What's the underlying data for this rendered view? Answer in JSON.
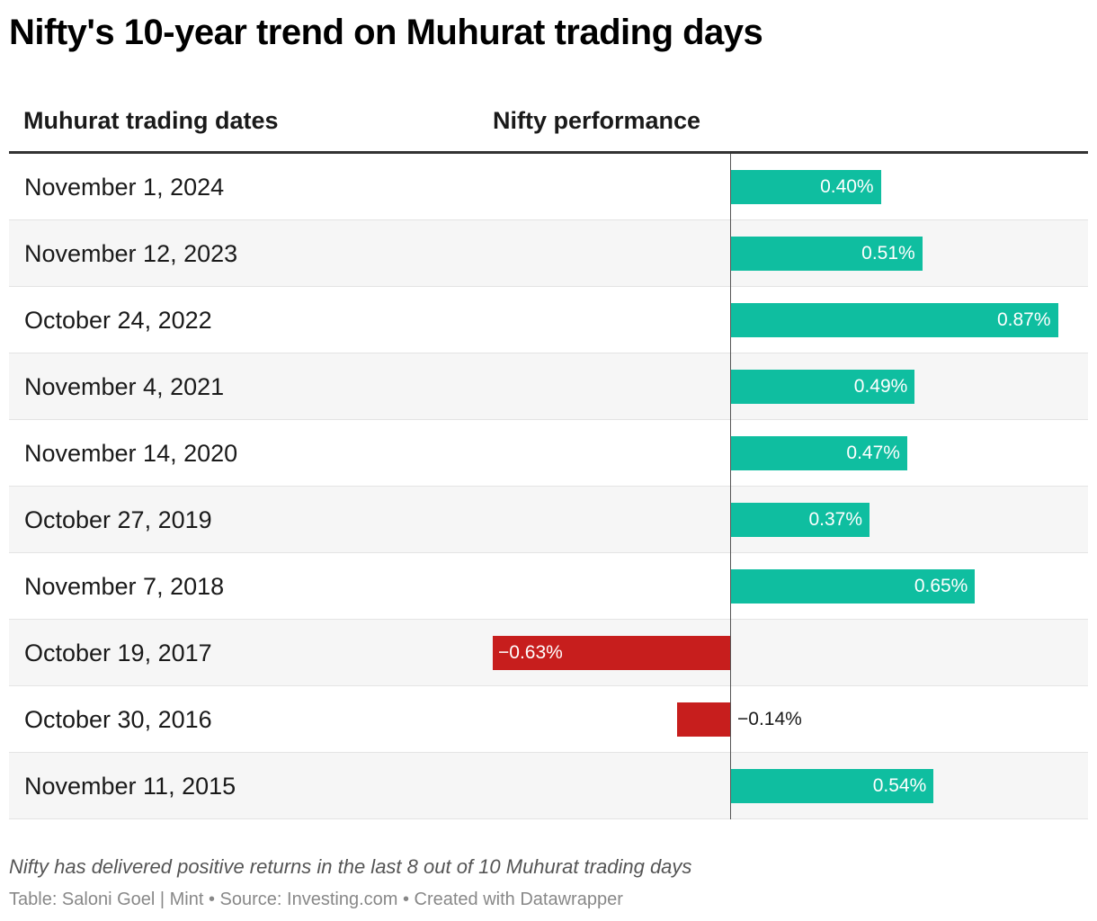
{
  "title": "Nifty's 10-year trend on Muhurat trading days",
  "columns": {
    "date": "Muhurat trading dates",
    "performance": "Nifty performance"
  },
  "colors": {
    "positive": "#0fbea0",
    "negative": "#c71e1d"
  },
  "chart_data": {
    "type": "bar",
    "orientation": "horizontal",
    "categories": [
      "November 1, 2024",
      "November 12, 2023",
      "October 24, 2022",
      "November 4, 2021",
      "November 14, 2020",
      "October 27, 2019",
      "November 7, 2018",
      "October 19, 2017",
      "October 30, 2016",
      "November 11, 2015"
    ],
    "values": [
      0.4,
      0.51,
      0.87,
      0.49,
      0.47,
      0.37,
      0.65,
      -0.63,
      -0.14,
      0.54
    ],
    "labels": [
      "0.40%",
      "0.51%",
      "0.87%",
      "0.49%",
      "0.47%",
      "0.37%",
      "0.65%",
      "−0.63%",
      "−0.14%",
      "0.54%"
    ],
    "xlim": [
      -0.63,
      0.87
    ]
  },
  "notes": "Nifty has delivered positive returns in the last 8 out of 10 Muhurat trading days",
  "source": "Table: Saloni Goel | Mint • Source: Investing.com • Created with Datawrapper"
}
